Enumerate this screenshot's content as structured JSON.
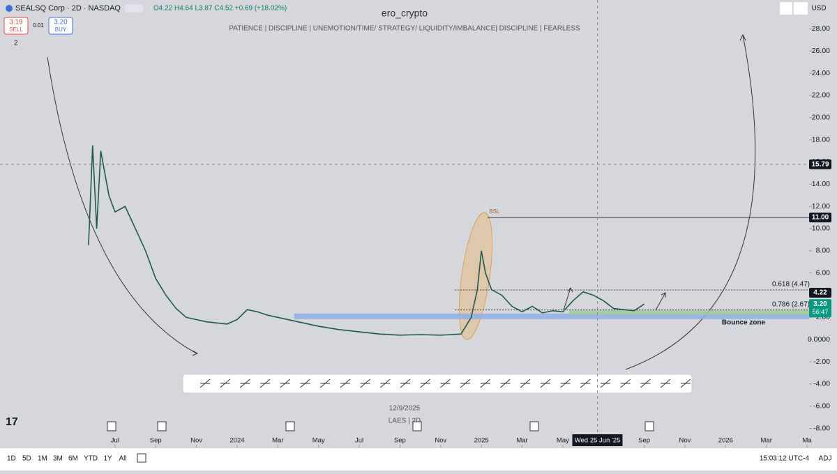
{
  "header": {
    "symbol": "SEALSQ Corp · 2D · NASDAQ",
    "ohlc": "O4.22 H4.64 L3.87 C4.52 +0.69 (+18.02%)",
    "sell_price": "3.19",
    "sell": "SELL",
    "spread": "0.01",
    "buy_price": "3.20",
    "buy": "BUY",
    "indicators": "2",
    "currency": "USD"
  },
  "chart_data": {
    "type": "line",
    "title": "ero_crypto",
    "subtitle": "PATIENCE  |  DISCIPLINE  |  UNEMOTION/TIME/ STRATEGY/ LIQUIDITY/IMBALANCE|  DISCIPLINE  |  FEARLESS",
    "series": [
      {
        "name": "LAES",
        "color": "#1e5b45",
        "x": [
          -1.3,
          -1.1,
          -0.9,
          -0.7,
          -0.5,
          -0.3,
          0,
          0.5,
          1,
          1.5,
          2,
          2.5,
          3,
          3.5,
          4,
          4.5,
          5,
          5.5,
          6,
          6.5,
          7,
          7.5,
          8,
          9,
          10,
          11,
          12,
          13,
          14,
          15,
          16,
          17,
          17.5,
          17.8,
          18,
          18.2,
          18.5,
          19,
          19.5,
          20,
          20.5,
          21,
          21.5,
          22,
          22.5,
          23,
          23.5,
          24,
          24.5,
          25,
          25.5,
          26
        ],
        "values": [
          8.5,
          17.5,
          10,
          17,
          15,
          13,
          11.5,
          12,
          10,
          8,
          5.5,
          4,
          2.8,
          2,
          1.8,
          1.6,
          1.5,
          1.4,
          1.8,
          2.7,
          2.5,
          2.2,
          2,
          1.6,
          1.2,
          0.9,
          0.7,
          0.5,
          0.4,
          0.45,
          0.4,
          0.5,
          2,
          4.5,
          8,
          6,
          4.5,
          4,
          3,
          2.5,
          3,
          2.4,
          2.6,
          2.5,
          3.5,
          4.3,
          4,
          3.5,
          2.8,
          2.7,
          2.6,
          3.2
        ]
      }
    ],
    "xlim": [
      -5.65,
      34.1
    ],
    "xticks": [
      {
        "value": 0,
        "label": "Jul"
      },
      {
        "value": 2,
        "label": "Sep"
      },
      {
        "value": 4,
        "label": "Nov"
      },
      {
        "value": 6,
        "label": "2024"
      },
      {
        "value": 8,
        "label": "Mar"
      },
      {
        "value": 10,
        "label": "May"
      },
      {
        "value": 12,
        "label": "Jul"
      },
      {
        "value": 14,
        "label": "Sep"
      },
      {
        "value": 16,
        "label": "Nov"
      },
      {
        "value": 18,
        "label": "2025"
      },
      {
        "value": 20,
        "label": "Mar"
      },
      {
        "value": 22,
        "label": "May"
      },
      {
        "value": 26,
        "label": "Sep"
      },
      {
        "value": 28,
        "label": "Nov"
      },
      {
        "value": 30,
        "label": "2026"
      },
      {
        "value": 32,
        "label": "Mar"
      },
      {
        "value": 34,
        "label": "Ma"
      }
    ],
    "ylim": [
      -9.6,
      30.6
    ],
    "yticks": [
      {
        "value": 28,
        "label": "28.00"
      },
      {
        "value": 26,
        "label": "26.00"
      },
      {
        "value": 24,
        "label": "24.00"
      },
      {
        "value": 22,
        "label": "22.00"
      },
      {
        "value": 20,
        "label": "20.00"
      },
      {
        "value": 18,
        "label": "18.00"
      },
      {
        "value": 16,
        "label": "16.00"
      },
      {
        "value": 14,
        "label": "14.00"
      },
      {
        "value": 12,
        "label": "12.00"
      },
      {
        "value": 10,
        "label": "10.00"
      },
      {
        "value": 8,
        "label": "8.00"
      },
      {
        "value": 6,
        "label": "6.00"
      },
      {
        "value": 4,
        "label": "4.00"
      },
      {
        "value": 2,
        "label": "2.00"
      },
      {
        "value": 0,
        "label": "0.0000"
      },
      {
        "value": -2,
        "label": "-2.00"
      },
      {
        "value": -4,
        "label": "-4.00"
      },
      {
        "value": -6,
        "label": "-6.00"
      },
      {
        "value": -8,
        "label": "-8.00"
      }
    ],
    "levels": [
      {
        "value": 11,
        "label": "11.00",
        "start": 18.3,
        "text": "BSL"
      },
      {
        "value": 4.47,
        "label": "0.618 (4.47)",
        "start": 16.7
      },
      {
        "value": 2.67,
        "label": "0.786 (2.67)",
        "start": 16.7
      }
    ],
    "zones": [
      {
        "low": 1.84,
        "high": 2.34,
        "color": "#8fb0e8",
        "start": 8.8,
        "label": "Bounce zone"
      },
      {
        "low": 2.2,
        "high": 2.67,
        "color": "#9fc9a0",
        "start": 22.3
      }
    ],
    "price_labels": [
      {
        "value": 15.79,
        "label": "15.79",
        "color": "#131722"
      },
      {
        "value": 11,
        "label": "11.00",
        "color": "#131722"
      },
      {
        "value": 4.22,
        "label": "4.22",
        "color": "#131722"
      },
      {
        "value": 3.2,
        "label": "3.20",
        "color": "#089981",
        "timer": "56:47"
      }
    ],
    "crosshair": {
      "x": 23.7,
      "y": 15.79,
      "label": "Wed 25 Jun '25"
    }
  },
  "footer": {
    "date": "12/9/2025",
    "symbol": "LAES  |  2D",
    "timeframes": [
      "1D",
      "5D",
      "1M",
      "3M",
      "6M",
      "YTD",
      "1Y",
      "All"
    ],
    "clock": "15:03:12 UTC-4",
    "adj": "ADJ"
  }
}
